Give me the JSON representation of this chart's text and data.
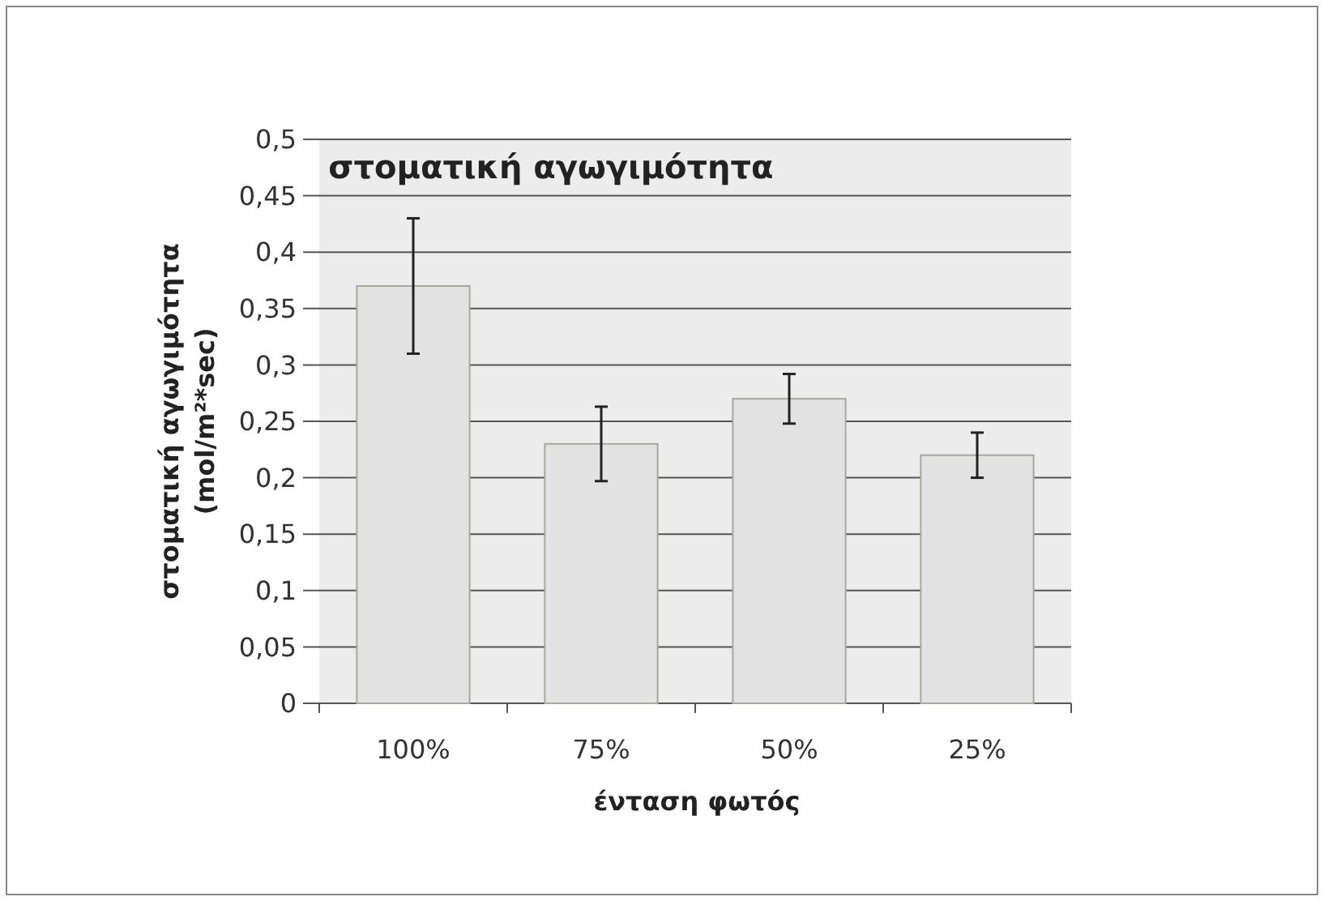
{
  "chart_data": {
    "type": "bar",
    "title": "στοματική αγωγιμότητα",
    "xlabel": "ένταση φωτός",
    "ylabel": "στοματική αγωγιμότητα\n(mol/m²*sec)",
    "categories": [
      "100%",
      "75%",
      "50%",
      "25%"
    ],
    "values": [
      0.37,
      0.23,
      0.27,
      0.22
    ],
    "errors": [
      0.06,
      0.033,
      0.022,
      0.02
    ],
    "color": "#e2e2e2",
    "ylim": [
      0,
      0.5
    ],
    "yticks": [
      0,
      {
        "value": 0.05,
        "label": "0,05"
      },
      {
        "value": 0.1,
        "label": "0,1"
      },
      {
        "value": 0.15,
        "label": "0,15"
      },
      {
        "value": 0.2,
        "label": "0,2"
      },
      {
        "value": 0.25,
        "label": "0,25"
      },
      {
        "value": 0.3,
        "label": "0,3"
      },
      {
        "value": 0.35,
        "label": "0,35"
      },
      {
        "value": 0.4,
        "label": "0,4"
      },
      {
        "value": 0.45,
        "label": "0,45"
      },
      {
        "value": 0.5,
        "label": "0,5"
      }
    ],
    "grid": "y"
  }
}
